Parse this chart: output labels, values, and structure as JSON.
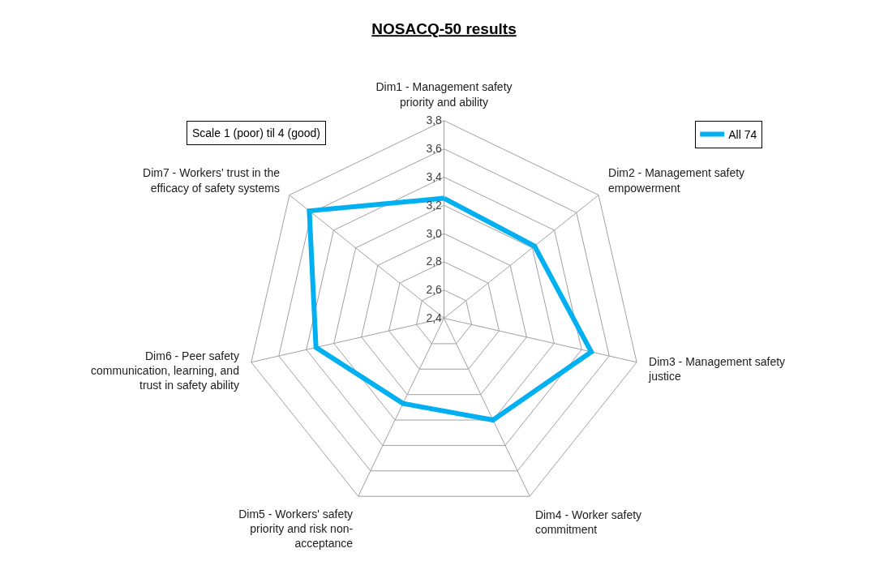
{
  "chart_data": {
    "type": "radar",
    "title": "NOSACQ-50 results",
    "categories": [
      "Dim1 - Management safety priority and ability",
      "Dim2 - Management safety empowerment",
      "Dim3 - Management safety justice",
      "Dim4 - Worker safety commitment",
      "Dim5 - Workers' safety priority and risk non-acceptance",
      "Dim6 - Peer safety communication, learning, and trust in safety ability",
      "Dim7 - Workers' trust in the efficacy of safety systems"
    ],
    "series": [
      {
        "name": "All 74",
        "color": "#00b0f0",
        "values": [
          3.25,
          3.22,
          3.47,
          3.2,
          3.07,
          3.33,
          3.62
        ]
      }
    ],
    "ylim": [
      2.4,
      3.8
    ],
    "yticks": [
      {
        "value": 2.4,
        "label": "2,4"
      },
      {
        "value": 2.6,
        "label": "2,6"
      },
      {
        "value": 2.8,
        "label": "2,8"
      },
      {
        "value": 3.0,
        "label": "3,0"
      },
      {
        "value": 3.2,
        "label": "3,2"
      },
      {
        "value": 3.4,
        "label": "3,4"
      },
      {
        "value": 3.6,
        "label": "3,6"
      },
      {
        "value": 3.8,
        "label": "3,8"
      }
    ],
    "grid": true,
    "legend": "top right",
    "marker": "none",
    "line_style": "solid",
    "annotations": [
      "Scale 1 (poor) til 4 (good)"
    ]
  }
}
